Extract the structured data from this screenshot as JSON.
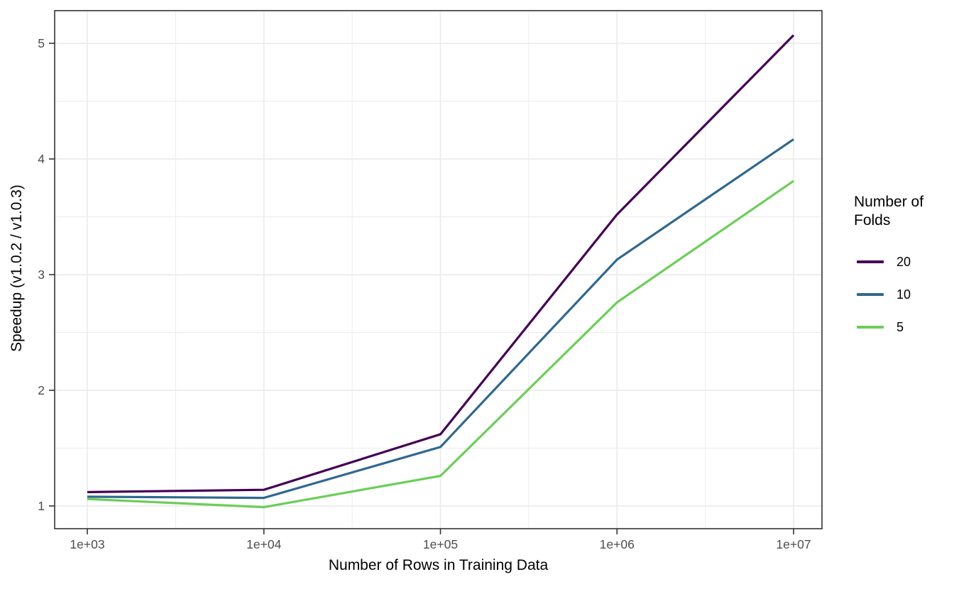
{
  "chart_data": {
    "type": "line",
    "title": "",
    "xlabel": "Number of Rows in Training Data",
    "ylabel": "Speedup (v1.0.2 / v1.0.3)",
    "x_scale": "log10",
    "x": [
      1000,
      10000,
      100000,
      1000000,
      10000000
    ],
    "x_tick_labels": [
      "1e+03",
      "1e+04",
      "1e+05",
      "1e+06",
      "1e+07"
    ],
    "y_ticks": [
      1,
      2,
      3,
      4,
      5
    ],
    "y_minor_ticks": [
      1.5,
      2.5,
      3.5,
      4.5
    ],
    "x_minor_log10": [
      3.5,
      4.5,
      5.5,
      6.5
    ],
    "xlim_log10": [
      2.815,
      7.16
    ],
    "ylim": [
      0.8,
      5.28
    ],
    "grid": "major+minor",
    "legend_position": "right",
    "legend_title": "Number of Folds",
    "series": [
      {
        "name": "20",
        "color": "#440154",
        "values": [
          1.12,
          1.14,
          1.62,
          3.52,
          5.07
        ]
      },
      {
        "name": "10",
        "color": "#31688E",
        "values": [
          1.08,
          1.07,
          1.51,
          3.13,
          4.17
        ]
      },
      {
        "name": "5",
        "color": "#6DCD59",
        "values": [
          1.06,
          0.99,
          1.26,
          2.76,
          3.81
        ]
      }
    ],
    "colors": {
      "grid": "#EBEBEB",
      "panel_border": "#333333",
      "tick_mark": "#333333",
      "tick_label": "#4D4D4D",
      "axis_title": "#000000",
      "background": "#FFFFFF"
    }
  }
}
